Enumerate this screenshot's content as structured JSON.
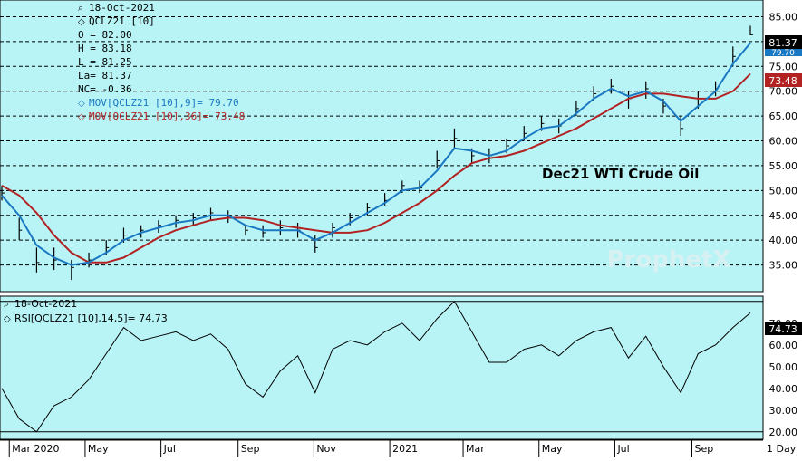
{
  "colors": {
    "background": "#b8f4f6",
    "price_bars": "#000000",
    "ma_short": "#1a78c2",
    "ma_long": "#b22222",
    "rsi_line": "#000000"
  },
  "info": {
    "date": "18-Oct-2021",
    "symbol": "QCLZ21 [10]",
    "open": "O = 82.00",
    "high": "H = 83.18",
    "low": "L = 81.25",
    "last": "La= 81.37",
    "change": "NC= -0.36",
    "ma_short": "MOV[QCLZ21 [10],9]= 79.70",
    "ma_long": "MOV[QCLZ21 [10],36]= 73.48"
  },
  "chart_title": "Dec21 WTI Crude Oil",
  "watermark": "ProphetX",
  "lower": {
    "date": "18-Oct-2021",
    "rsi_label": "RSI[QCLZ21 [10],14,5]= 74.73"
  },
  "badges": {
    "last": "81.37",
    "ma_short": "79.70",
    "ma_long": "73.48",
    "rsi": "74.73"
  },
  "x_axis": {
    "labels": [
      "Mar 2020",
      "May",
      "Jul",
      "Sep",
      "Nov",
      "2021",
      "Mar",
      "May",
      "Jul",
      "Sep"
    ],
    "period": "1 Day"
  },
  "chart_data": [
    {
      "type": "line",
      "title": "Dec21 WTI Crude Oil",
      "ylim": [
        30,
        88
      ],
      "yticks": [
        35,
        40,
        45,
        50,
        55,
        60,
        65,
        70,
        75,
        80,
        85
      ],
      "ytick_labels": [
        "35.00",
        "40.00",
        "45.00",
        "50.00",
        "55.00",
        "60.00",
        "65.00",
        "70.00",
        "75.00",
        "80.00",
        "85.00"
      ],
      "grid": true,
      "x": [
        "2020-02-24",
        "2020-03-09",
        "2020-03-23",
        "2020-04-06",
        "2020-04-20",
        "2020-05-04",
        "2020-05-18",
        "2020-06-01",
        "2020-06-15",
        "2020-06-29",
        "2020-07-13",
        "2020-07-27",
        "2020-08-10",
        "2020-08-24",
        "2020-09-07",
        "2020-09-21",
        "2020-10-05",
        "2020-10-19",
        "2020-11-02",
        "2020-11-16",
        "2020-11-30",
        "2020-12-14",
        "2020-12-28",
        "2021-01-11",
        "2021-01-25",
        "2021-02-08",
        "2021-02-22",
        "2021-03-08",
        "2021-03-22",
        "2021-04-05",
        "2021-04-19",
        "2021-05-03",
        "2021-05-17",
        "2021-05-31",
        "2021-06-14",
        "2021-06-28",
        "2021-07-12",
        "2021-07-26",
        "2021-08-09",
        "2021-08-23",
        "2021-09-06",
        "2021-09-20",
        "2021-10-04",
        "2021-10-18"
      ],
      "series": [
        {
          "role": "close",
          "values": [
            49.5,
            42.0,
            35.5,
            36.0,
            34.5,
            36.0,
            38.5,
            41.0,
            42.0,
            43.0,
            44.0,
            44.5,
            45.5,
            45.0,
            42.0,
            41.5,
            42.5,
            42.0,
            38.5,
            42.5,
            44.5,
            46.5,
            48.0,
            51.0,
            50.5,
            56.0,
            60.5,
            57.0,
            57.0,
            59.0,
            61.5,
            63.5,
            63.0,
            66.5,
            69.5,
            71.0,
            68.5,
            70.5,
            67.0,
            62.5,
            68.5,
            70.5,
            77.0,
            81.37
          ]
        },
        {
          "role": "high",
          "values": [
            51.0,
            44.5,
            38.5,
            38.5,
            36.0,
            37.5,
            40.0,
            42.5,
            43.0,
            44.0,
            45.0,
            45.5,
            46.5,
            46.0,
            43.0,
            43.0,
            44.0,
            43.5,
            41.0,
            43.5,
            45.5,
            47.5,
            49.5,
            52.0,
            52.0,
            58.0,
            62.5,
            58.5,
            58.5,
            60.5,
            63.0,
            65.0,
            64.5,
            68.0,
            71.0,
            72.5,
            70.0,
            72.0,
            68.5,
            65.0,
            70.0,
            72.0,
            79.0,
            83.18
          ]
        },
        {
          "role": "low",
          "values": [
            48.0,
            40.0,
            33.5,
            34.0,
            32.0,
            34.5,
            37.0,
            39.5,
            40.5,
            41.5,
            42.5,
            43.0,
            44.0,
            43.5,
            41.0,
            40.5,
            41.0,
            40.5,
            37.5,
            40.5,
            43.0,
            45.0,
            47.0,
            49.5,
            49.5,
            54.5,
            58.5,
            55.5,
            55.5,
            57.5,
            60.0,
            62.0,
            61.5,
            65.0,
            68.0,
            69.5,
            66.5,
            68.5,
            65.5,
            61.0,
            66.5,
            69.0,
            75.0,
            81.25
          ]
        },
        {
          "name": "MOV[QCLZ21 [10],9]",
          "role": "ma_short",
          "values": [
            49.0,
            45.0,
            39.0,
            36.5,
            35.0,
            35.5,
            37.5,
            40.0,
            41.5,
            42.5,
            43.5,
            44.0,
            45.0,
            45.0,
            43.0,
            42.0,
            42.0,
            42.0,
            40.0,
            41.5,
            43.5,
            45.5,
            47.5,
            50.0,
            50.5,
            54.0,
            58.5,
            58.0,
            57.0,
            58.0,
            60.5,
            62.5,
            63.0,
            65.5,
            68.5,
            70.5,
            69.0,
            70.0,
            68.0,
            64.0,
            67.0,
            70.0,
            75.5,
            79.7
          ]
        },
        {
          "name": "MOV[QCLZ21 [10],36]",
          "role": "ma_long",
          "values": [
            51.0,
            49.0,
            45.5,
            41.0,
            37.5,
            35.5,
            35.5,
            36.5,
            38.5,
            40.5,
            42.0,
            43.0,
            44.0,
            44.5,
            44.5,
            44.0,
            43.0,
            42.5,
            42.0,
            41.5,
            41.5,
            42.0,
            43.5,
            45.5,
            47.5,
            50.0,
            53.0,
            55.5,
            56.5,
            57.0,
            58.0,
            59.5,
            61.0,
            62.5,
            64.5,
            66.5,
            68.5,
            69.5,
            69.5,
            69.0,
            68.5,
            68.5,
            70.0,
            73.48
          ]
        }
      ]
    },
    {
      "type": "line",
      "ylim": [
        17,
        82
      ],
      "yticks": [
        20,
        30,
        40,
        50,
        60,
        70
      ],
      "ytick_labels": [
        "20.00",
        "30.00",
        "40.00",
        "50.00",
        "60.00",
        "70.00"
      ],
      "reference_lines": [
        20,
        80
      ],
      "x": [
        "2020-02-24",
        "2020-03-09",
        "2020-03-23",
        "2020-04-06",
        "2020-04-20",
        "2020-05-04",
        "2020-05-18",
        "2020-06-01",
        "2020-06-15",
        "2020-06-29",
        "2020-07-13",
        "2020-07-27",
        "2020-08-10",
        "2020-08-24",
        "2020-09-07",
        "2020-09-21",
        "2020-10-05",
        "2020-10-19",
        "2020-11-02",
        "2020-11-16",
        "2020-11-30",
        "2020-12-14",
        "2020-12-28",
        "2021-01-11",
        "2021-01-25",
        "2021-02-08",
        "2021-02-22",
        "2021-03-08",
        "2021-03-22",
        "2021-04-05",
        "2021-04-19",
        "2021-05-03",
        "2021-05-17",
        "2021-05-31",
        "2021-06-14",
        "2021-06-28",
        "2021-07-12",
        "2021-07-26",
        "2021-08-09",
        "2021-08-23",
        "2021-09-06",
        "2021-09-20",
        "2021-10-04",
        "2021-10-18"
      ],
      "series": [
        {
          "name": "RSI[QCLZ21 [10],14,5]",
          "values": [
            40,
            26,
            20,
            32,
            36,
            44,
            56,
            68,
            62,
            64,
            66,
            62,
            65,
            58,
            42,
            36,
            48,
            55,
            38,
            58,
            62,
            60,
            66,
            70,
            62,
            72,
            80,
            66,
            52,
            52,
            58,
            60,
            55,
            62,
            66,
            68,
            54,
            64,
            50,
            38,
            56,
            60,
            68,
            74.73
          ]
        }
      ]
    }
  ]
}
